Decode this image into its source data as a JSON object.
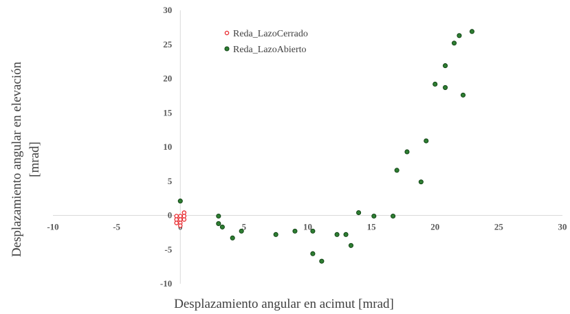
{
  "chart_data": {
    "type": "scatter",
    "title": "",
    "xlabel": "Desplazamiento angular en acimut [mrad]",
    "ylabel_lines": [
      "Desplazamiento angular en elevación",
      "[mrad]"
    ],
    "xlim": [
      -10,
      30
    ],
    "ylim": [
      -10,
      30
    ],
    "x_ticks": [
      -10,
      -5,
      0,
      5,
      10,
      15,
      20,
      25,
      30
    ],
    "y_ticks": [
      -10,
      -5,
      0,
      5,
      10,
      15,
      20,
      25,
      30
    ],
    "x_tick_labels": [
      "-10",
      "-5",
      "0",
      "5",
      "10",
      "15",
      "20",
      "25",
      "30"
    ],
    "y_tick_labels": [
      "-10",
      "-5",
      "0",
      "5",
      "10",
      "15",
      "20",
      "25",
      "30"
    ],
    "grid": false,
    "legend_position": "top-center",
    "series": [
      {
        "name": "Reda_LazoCerrado",
        "marker": "hollow-circle",
        "color": "#e8262b",
        "points": [
          [
            -0.3,
            -0.1
          ],
          [
            0.0,
            -0.1
          ],
          [
            0.3,
            0.4
          ],
          [
            -0.3,
            -0.6
          ],
          [
            0.0,
            -0.6
          ],
          [
            0.3,
            -0.6
          ],
          [
            -0.3,
            -1.1
          ],
          [
            0.0,
            -1.1
          ],
          [
            0.0,
            -1.5
          ],
          [
            0.3,
            -0.1
          ]
        ]
      },
      {
        "name": "Reda_LazoAbierto",
        "marker": "filled-circle",
        "color": "#2e7d32",
        "points": [
          [
            0.0,
            2.1
          ],
          [
            3.0,
            -0.1
          ],
          [
            3.0,
            -1.2
          ],
          [
            3.3,
            -1.7
          ],
          [
            4.1,
            -3.3
          ],
          [
            4.8,
            -2.3
          ],
          [
            7.5,
            -2.8
          ],
          [
            9.0,
            -2.3
          ],
          [
            10.4,
            -2.3
          ],
          [
            10.4,
            -5.6
          ],
          [
            11.1,
            -6.7
          ],
          [
            12.3,
            -2.8
          ],
          [
            13.0,
            -2.8
          ],
          [
            13.4,
            -4.4
          ],
          [
            14.0,
            0.4
          ],
          [
            15.2,
            -0.1
          ],
          [
            16.7,
            -0.1
          ],
          [
            17.0,
            6.6
          ],
          [
            17.8,
            9.3
          ],
          [
            18.9,
            4.9
          ],
          [
            19.3,
            10.9
          ],
          [
            20.0,
            19.2
          ],
          [
            20.8,
            18.7
          ],
          [
            20.8,
            21.9
          ],
          [
            21.5,
            25.2
          ],
          [
            21.9,
            26.3
          ],
          [
            22.2,
            17.6
          ],
          [
            22.9,
            26.9
          ]
        ]
      }
    ]
  }
}
